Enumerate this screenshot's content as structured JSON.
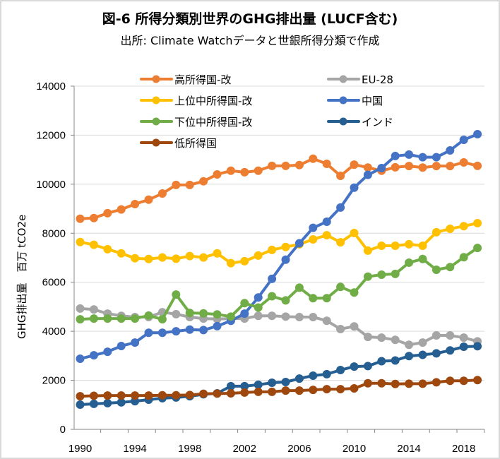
{
  "chart_data": {
    "type": "line",
    "title": "図-6 所得分類別世界のGHG排出量 (LUCF含む)",
    "subtitle": "出所: Climate Watchデータと世銀所得分類で作成",
    "xlabel": "",
    "ylabel": "GHG排出量　百万 tCO2e",
    "ylim": [
      0,
      14000
    ],
    "yticks": [
      0,
      2000,
      4000,
      6000,
      8000,
      10000,
      12000,
      14000
    ],
    "xlim": [
      1990,
      2019
    ],
    "xticks": [
      1990,
      1994,
      1998,
      2002,
      2006,
      2010,
      2014,
      2018
    ],
    "grid": true,
    "legend_position": "top-inside",
    "x": [
      1990,
      1991,
      1992,
      1993,
      1994,
      1995,
      1996,
      1997,
      1998,
      1999,
      2000,
      2001,
      2002,
      2003,
      2004,
      2005,
      2006,
      2007,
      2008,
      2009,
      2010,
      2011,
      2012,
      2013,
      2014,
      2015,
      2016,
      2017,
      2018,
      2019
    ],
    "series": [
      {
        "name": "高所得国-改",
        "color": "#ed7d31",
        "values": [
          8590,
          8620,
          8820,
          8970,
          9190,
          9370,
          9620,
          9970,
          9970,
          10120,
          10400,
          10550,
          10490,
          10550,
          10750,
          10750,
          10780,
          11040,
          10830,
          10340,
          10800,
          10680,
          10550,
          10690,
          10740,
          10680,
          10740,
          10740,
          10890,
          10750
        ]
      },
      {
        "name": "EU-28",
        "color": "#a5a5a5",
        "values": [
          4930,
          4890,
          4720,
          4630,
          4580,
          4580,
          4780,
          4700,
          4580,
          4520,
          4500,
          4520,
          4520,
          4630,
          4630,
          4600,
          4580,
          4580,
          4430,
          4090,
          4200,
          3770,
          3740,
          3650,
          3450,
          3540,
          3830,
          3830,
          3740,
          3590
        ]
      },
      {
        "name": "上位中所得国-改",
        "color": "#ffc000",
        "values": [
          7640,
          7530,
          7350,
          7180,
          6980,
          6950,
          7010,
          6960,
          7070,
          7010,
          7180,
          6780,
          6860,
          7090,
          7320,
          7440,
          7550,
          7750,
          7920,
          7630,
          8010,
          7290,
          7490,
          7490,
          7550,
          7490,
          8040,
          8180,
          8290,
          8410
        ]
      },
      {
        "name": "中国",
        "color": "#4472c4",
        "values": [
          2880,
          3020,
          3165,
          3400,
          3540,
          3940,
          3940,
          4000,
          4070,
          4050,
          4210,
          4430,
          4720,
          5380,
          6140,
          6920,
          7590,
          8220,
          8470,
          9050,
          9860,
          10380,
          10660,
          11150,
          11210,
          11100,
          11100,
          11380,
          11810,
          12040
        ]
      },
      {
        "name": "下位中所得国-改",
        "color": "#70ad47",
        "values": [
          4490,
          4520,
          4520,
          4520,
          4520,
          4640,
          4490,
          5500,
          4750,
          4730,
          4690,
          4600,
          5150,
          4970,
          5430,
          5260,
          5780,
          5350,
          5350,
          5810,
          5580,
          6230,
          6310,
          6340,
          6800,
          6950,
          6510,
          6620,
          7020,
          7400
        ]
      },
      {
        "name": "インド",
        "color": "#255e91",
        "values": [
          1007,
          1040,
          1070,
          1100,
          1150,
          1210,
          1270,
          1300,
          1350,
          1430,
          1470,
          1760,
          1760,
          1820,
          1900,
          1930,
          2070,
          2190,
          2250,
          2420,
          2560,
          2580,
          2780,
          2810,
          2990,
          3040,
          3100,
          3220,
          3370,
          3390
        ]
      },
      {
        "name": "低所得国",
        "color": "#9e480e",
        "values": [
          1350,
          1370,
          1380,
          1380,
          1380,
          1380,
          1390,
          1390,
          1400,
          1450,
          1460,
          1470,
          1500,
          1530,
          1530,
          1580,
          1580,
          1610,
          1640,
          1640,
          1670,
          1880,
          1880,
          1850,
          1860,
          1860,
          1920,
          1980,
          1980,
          2010
        ]
      }
    ]
  }
}
